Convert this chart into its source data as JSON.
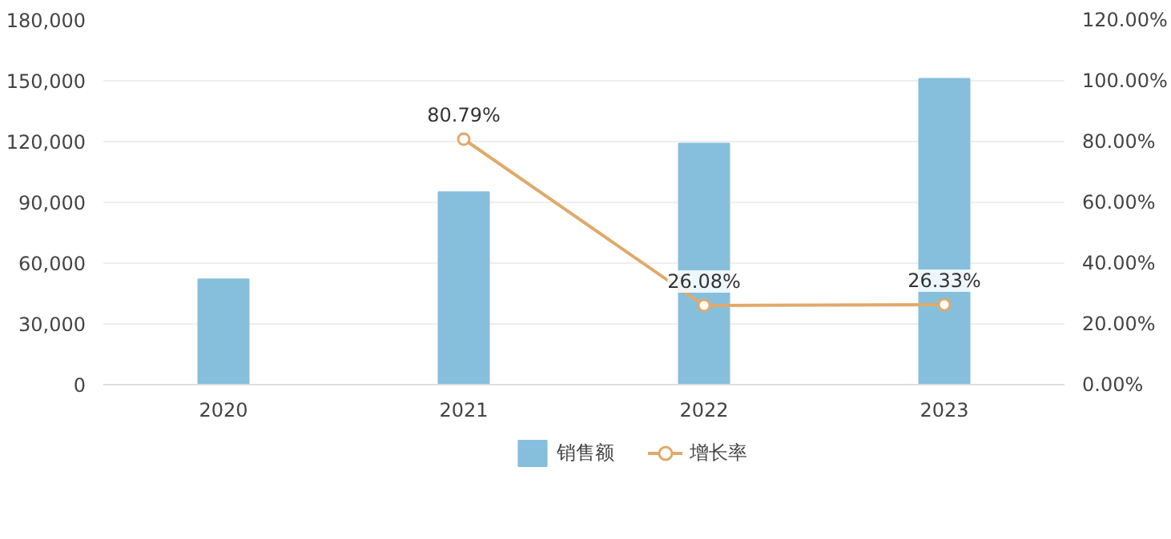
{
  "chart_data": {
    "type": "bar",
    "categories": [
      "2020",
      "2021",
      "2022",
      "2023"
    ],
    "series": [
      {
        "name": "销售额",
        "color": "#86bfdc",
        "values": [
          52000,
          95000,
          119000,
          151000
        ]
      },
      {
        "name": "增长率",
        "type": "line",
        "axis": "y2",
        "color": "#e0a96b",
        "values": [
          null,
          80.79,
          26.08,
          26.33
        ],
        "value_labels": [
          null,
          "80.79%",
          "26.08%",
          "26.33%"
        ]
      }
    ],
    "ylim": [
      0,
      180000
    ],
    "yticks": [
      0,
      {
        "value": 30000,
        "label": "30,000"
      },
      {
        "value": 60000,
        "label": "60,000"
      },
      {
        "value": 90000,
        "label": "90,000"
      },
      {
        "value": 120000,
        "label": "120,000"
      },
      {
        "value": 150000,
        "label": "150,000"
      },
      {
        "value": 180000,
        "label": "180,000"
      }
    ],
    "y2lim": [
      0,
      120
    ],
    "y2ticks": [
      {
        "value": 0,
        "label": "0.00%"
      },
      {
        "value": 20,
        "label": "20.00%"
      },
      {
        "value": 40,
        "label": "40.00%"
      },
      {
        "value": 60,
        "label": "60.00%"
      },
      {
        "value": 80,
        "label": "80.00%"
      },
      {
        "value": 100,
        "label": "100.00%"
      },
      {
        "value": 120,
        "label": "120.00%"
      }
    ],
    "grid": "y",
    "legend": "bottom",
    "marker": "circle"
  }
}
